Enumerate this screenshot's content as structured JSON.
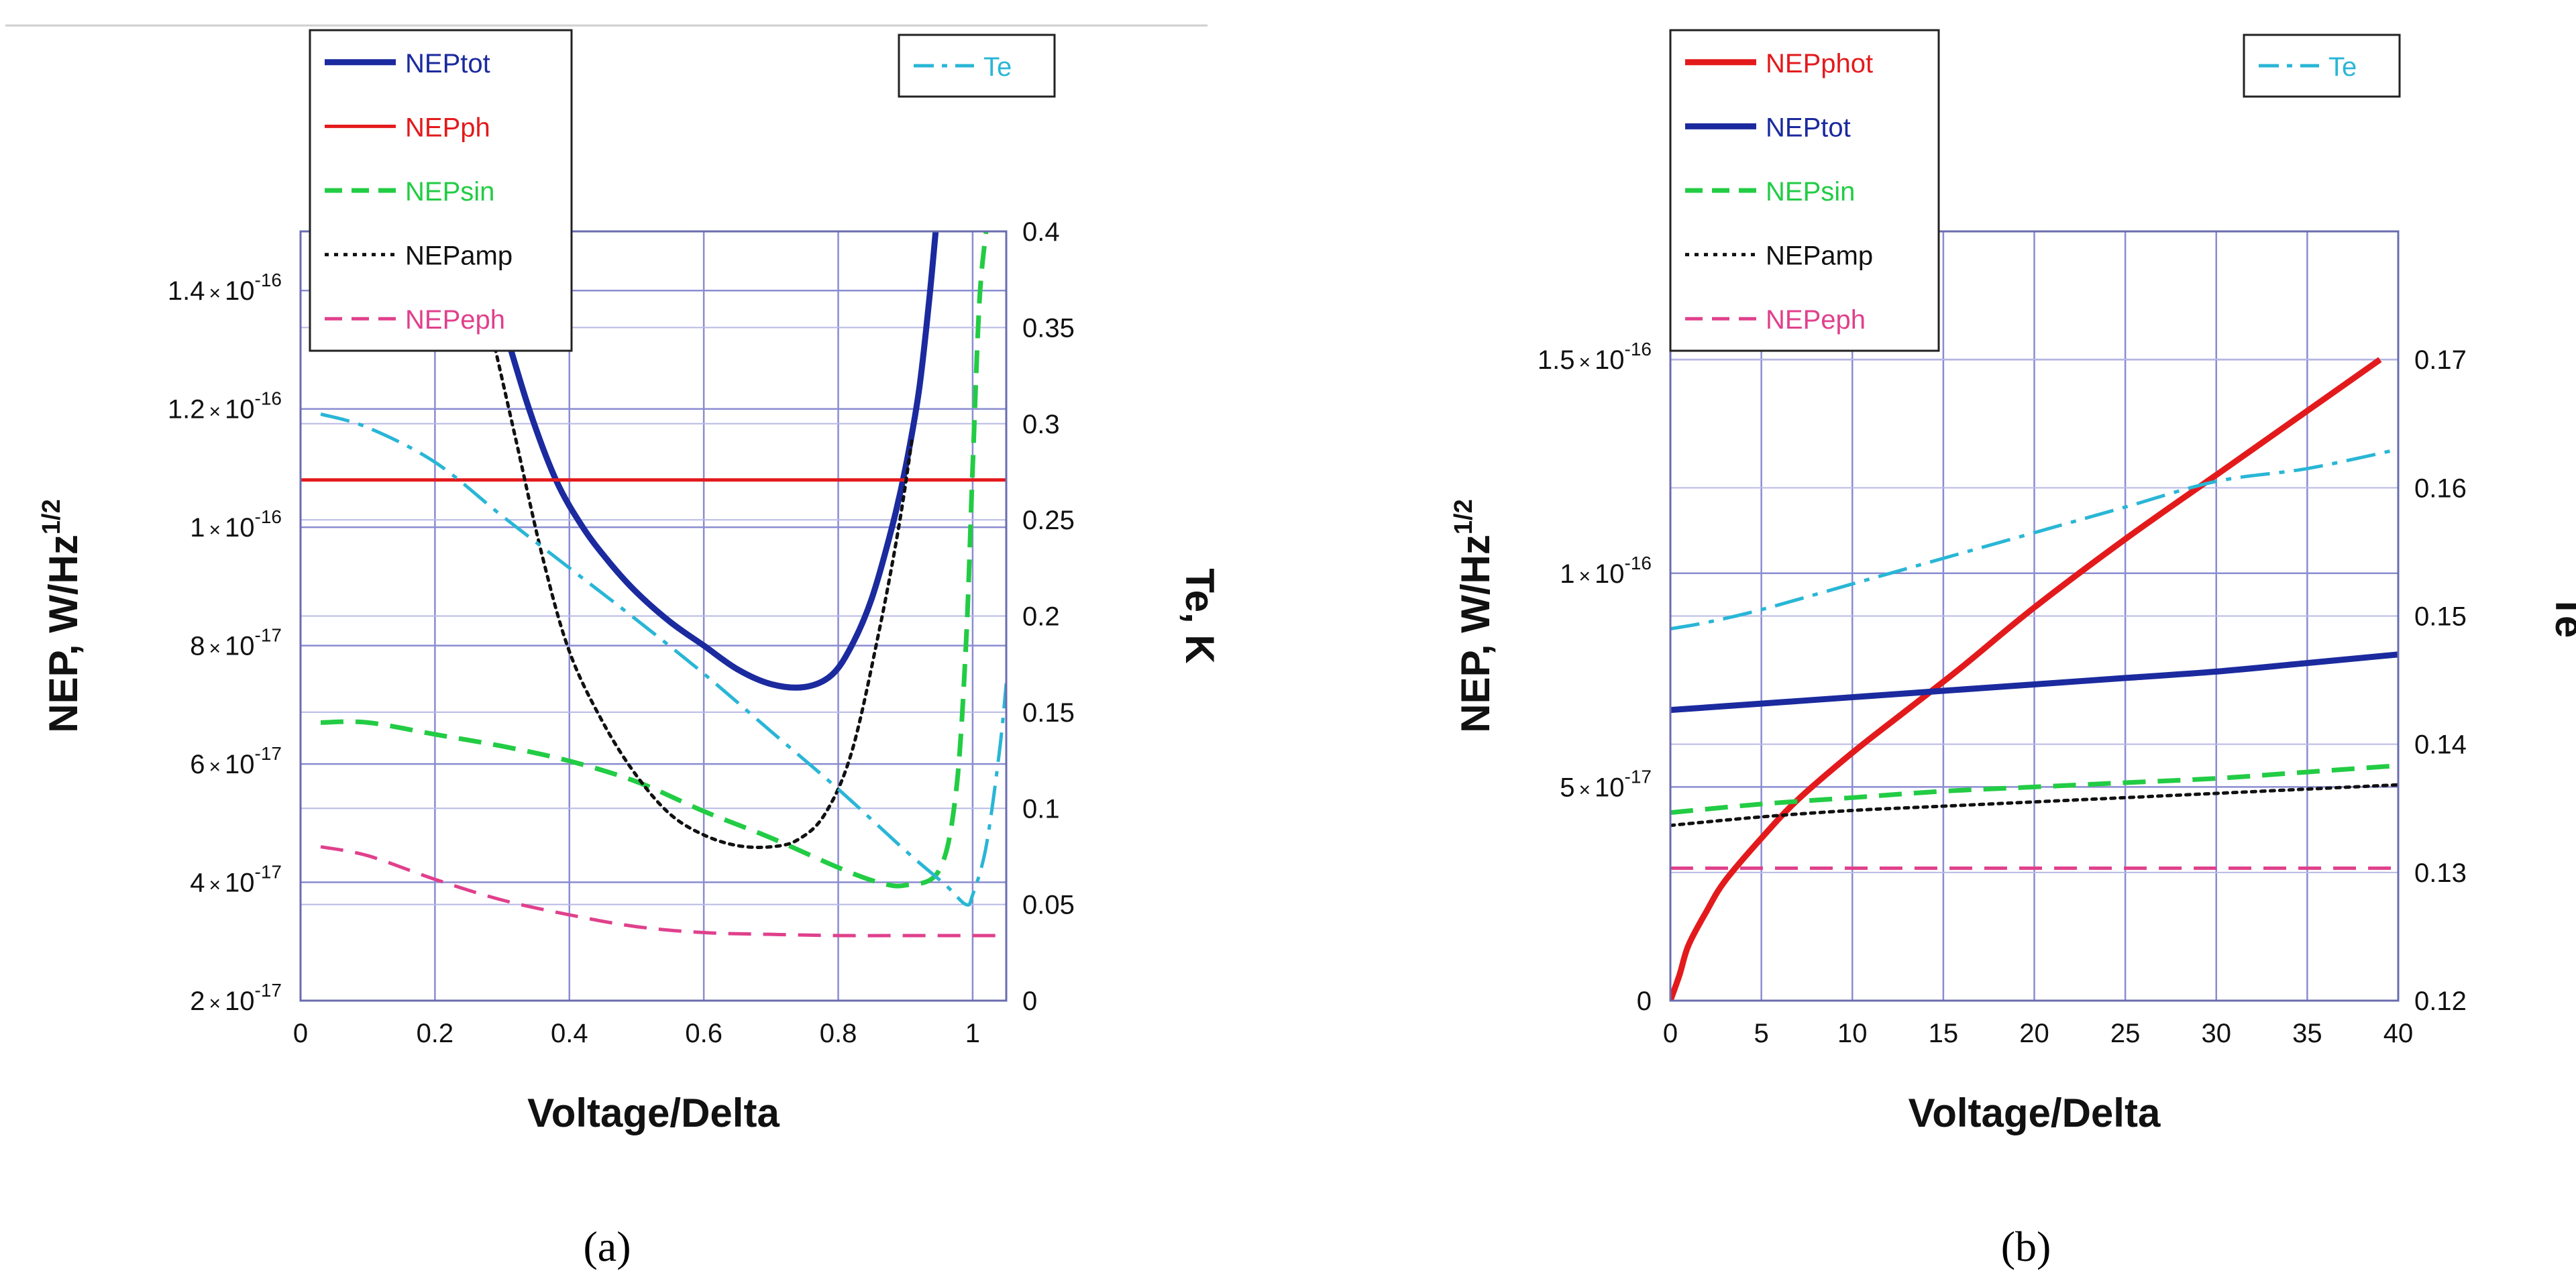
{
  "chart_data": [
    {
      "panel": "(a)",
      "type": "line",
      "xlabel": "Voltage/Delta",
      "ylabel": "NEP, W/Hz",
      "ylabel_sup": "1/2",
      "y2label": "Te, K",
      "xlim": [
        0,
        1.05
      ],
      "ylim": [
        2e-17,
        1.5e-16
      ],
      "y2lim": [
        0,
        0.4
      ],
      "x_ticks": [
        "0",
        "0.2",
        "0.4",
        "0.6",
        "0.8",
        "1"
      ],
      "x_tick_values": [
        0,
        0.2,
        0.4,
        0.6,
        0.8,
        1.0
      ],
      "y_ticks": [
        {
          "value": 2e-17,
          "mant": "2",
          "exp": "-17"
        },
        {
          "value": 4e-17,
          "mant": "4",
          "exp": "-17"
        },
        {
          "value": 6e-17,
          "mant": "6",
          "exp": "-17"
        },
        {
          "value": 8e-17,
          "mant": "8",
          "exp": "-17"
        },
        {
          "value": 1e-16,
          "mant": "1",
          "exp": "-16"
        },
        {
          "value": 1.2e-16,
          "mant": "1.2",
          "exp": "-16"
        },
        {
          "value": 1.4e-16,
          "mant": "1.4",
          "exp": "-16"
        }
      ],
      "y2_ticks": [
        "0",
        "0.05",
        "0.1",
        "0.15",
        "0.2",
        "0.25",
        "0.3",
        "0.35",
        "0.4"
      ],
      "y2_tick_values": [
        0,
        0.05,
        0.1,
        0.15,
        0.2,
        0.25,
        0.3,
        0.35,
        0.4
      ],
      "grid": true,
      "legend": {
        "left": "top-left",
        "right": "top-right"
      },
      "series": [
        {
          "name": "NEPtot",
          "axis": "left",
          "color": "#1b2a9e",
          "style": "solid",
          "width": 9,
          "x": [
            0.3,
            0.34,
            0.38,
            0.42,
            0.46,
            0.5,
            0.55,
            0.6,
            0.65,
            0.7,
            0.75,
            0.79,
            0.82,
            0.85,
            0.88,
            0.9,
            0.92,
            0.935,
            0.945
          ],
          "y": [
            1.35e-16,
            1.2e-16,
            1.08e-16,
            1e-16,
            9.4e-17,
            8.9e-17,
            8.4e-17,
            8e-17,
            7.6e-17,
            7.35e-17,
            7.3e-17,
            7.5e-17,
            8e-17,
            8.8e-17,
            1e-16,
            1.1e-16,
            1.23e-16,
            1.38e-16,
            1.5e-16
          ]
        },
        {
          "name": "NEPph",
          "axis": "left",
          "color": "#e31a1c",
          "style": "solid",
          "width": 5,
          "x": [
            0,
            1.05
          ],
          "y": [
            1.08e-16,
            1.08e-16
          ]
        },
        {
          "name": "NEPsin",
          "axis": "left",
          "color": "#22cc44",
          "style": "dash",
          "width": 7,
          "x": [
            0.03,
            0.1,
            0.2,
            0.3,
            0.4,
            0.5,
            0.6,
            0.7,
            0.8,
            0.86,
            0.9,
            0.95,
            0.975,
            0.99,
            1.0,
            1.01,
            1.02
          ],
          "y": [
            6.7e-17,
            6.7e-17,
            6.5e-17,
            6.3e-17,
            6.05e-17,
            5.7e-17,
            5.2e-17,
            4.75e-17,
            4.25e-17,
            4e-17,
            3.95e-17,
            4.2e-17,
            5.5e-17,
            8e-17,
            1.1e-16,
            1.38e-16,
            1.5e-16
          ]
        },
        {
          "name": "NEPamp",
          "axis": "left",
          "color": "#111111",
          "style": "dot",
          "width": 5,
          "x": [
            0.28,
            0.32,
            0.36,
            0.4,
            0.45,
            0.5,
            0.55,
            0.6,
            0.65,
            0.7,
            0.74,
            0.78,
            0.82,
            0.86,
            0.89,
            0.91
          ],
          "y": [
            1.35e-16,
            1.15e-16,
            9.5e-17,
            7.9e-17,
            6.7e-17,
            5.8e-17,
            5.15e-17,
            4.8e-17,
            4.62e-17,
            4.6e-17,
            4.72e-17,
            5.15e-17,
            6.2e-17,
            8.2e-17,
            1e-16,
            1.15e-16
          ]
        },
        {
          "name": "NEPeph",
          "axis": "left",
          "color": "#e0408c",
          "style": "dash",
          "width": 5,
          "x": [
            0.03,
            0.1,
            0.2,
            0.3,
            0.4,
            0.5,
            0.6,
            0.7,
            0.8,
            0.9,
            1.0,
            1.05
          ],
          "y": [
            4.6e-17,
            4.45e-17,
            4.05e-17,
            3.7e-17,
            3.45e-17,
            3.25e-17,
            3.15e-17,
            3.12e-17,
            3.1e-17,
            3.1e-17,
            3.1e-17,
            3.1e-17
          ]
        },
        {
          "name": "Te",
          "axis": "right",
          "color": "#29b6d6",
          "style": "dashdot",
          "width": 5,
          "x": [
            0.03,
            0.1,
            0.2,
            0.3,
            0.4,
            0.5,
            0.6,
            0.7,
            0.8,
            0.9,
            0.96,
            0.99,
            1.0,
            1.02,
            1.04,
            1.05
          ],
          "y": [
            0.305,
            0.298,
            0.28,
            0.252,
            0.225,
            0.198,
            0.17,
            0.14,
            0.11,
            0.078,
            0.06,
            0.05,
            0.055,
            0.08,
            0.13,
            0.165
          ]
        }
      ]
    },
    {
      "panel": "(b)",
      "type": "line",
      "xlabel": "Voltage/Delta",
      "ylabel": "NEP, W/Hz",
      "ylabel_sup": "1/2",
      "y2label": "Te",
      "xlim": [
        0,
        40
      ],
      "ylim": [
        0,
        1.8e-16
      ],
      "y2lim": [
        0.12,
        0.18
      ],
      "x_ticks": [
        "0",
        "5",
        "10",
        "15",
        "20",
        "25",
        "30",
        "35",
        "40"
      ],
      "x_tick_values": [
        0,
        5,
        10,
        15,
        20,
        25,
        30,
        35,
        40
      ],
      "y_ticks": [
        {
          "value": 0,
          "mant": "0",
          "exp": ""
        },
        {
          "value": 5e-17,
          "mant": "5",
          "exp": "-17"
        },
        {
          "value": 1e-16,
          "mant": "1",
          "exp": "-16"
        },
        {
          "value": 1.5e-16,
          "mant": "1.5",
          "exp": "-16"
        }
      ],
      "y2_ticks": [
        "0.12",
        "0.13",
        "0.14",
        "0.15",
        "0.16",
        "0.17"
      ],
      "y2_tick_values": [
        0.12,
        0.13,
        0.14,
        0.15,
        0.16,
        0.17
      ],
      "grid": true,
      "legend": {
        "left": "top-left",
        "right": "top-right"
      },
      "series": [
        {
          "name": "NEPphot",
          "axis": "left",
          "color": "#e31a1c",
          "style": "solid",
          "width": 9,
          "x": [
            0,
            0.5,
            1,
            2,
            3,
            5,
            7,
            10,
            13,
            16,
            20,
            25,
            30,
            35,
            39
          ],
          "y": [
            0,
            6e-18,
            1.3e-17,
            2.1e-17,
            2.8e-17,
            3.8e-17,
            4.7e-17,
            5.8e-17,
            6.8e-17,
            7.8e-17,
            9.2e-17,
            1.08e-16,
            1.23e-16,
            1.38e-16,
            1.5e-16
          ]
        },
        {
          "name": "NEPtot",
          "axis": "left",
          "color": "#1b2a9e",
          "style": "solid",
          "width": 9,
          "x": [
            0,
            5,
            10,
            15,
            20,
            25,
            30,
            35,
            40
          ],
          "y": [
            6.8e-17,
            6.95e-17,
            7.1e-17,
            7.25e-17,
            7.4e-17,
            7.55e-17,
            7.7e-17,
            7.9e-17,
            8.1e-17
          ]
        },
        {
          "name": "NEPsin",
          "axis": "left",
          "color": "#22cc44",
          "style": "dash",
          "width": 7,
          "x": [
            0,
            5,
            10,
            15,
            20,
            25,
            30,
            35,
            40
          ],
          "y": [
            4.4e-17,
            4.6e-17,
            4.75e-17,
            4.9e-17,
            5e-17,
            5.1e-17,
            5.2e-17,
            5.35e-17,
            5.5e-17
          ]
        },
        {
          "name": "NEPamp",
          "axis": "left",
          "color": "#111111",
          "style": "dot",
          "width": 5,
          "x": [
            0,
            5,
            10,
            15,
            20,
            25,
            30,
            35,
            40
          ],
          "y": [
            4.1e-17,
            4.3e-17,
            4.45e-17,
            4.55e-17,
            4.65e-17,
            4.75e-17,
            4.85e-17,
            4.95e-17,
            5.05e-17
          ]
        },
        {
          "name": "NEPeph",
          "axis": "left",
          "color": "#e0408c",
          "style": "dash",
          "width": 5,
          "x": [
            0,
            40
          ],
          "y": [
            3.1e-17,
            3.1e-17
          ]
        },
        {
          "name": "Te",
          "axis": "right",
          "color": "#29b6d6",
          "style": "dashdot",
          "width": 5,
          "x": [
            0,
            2,
            5,
            10,
            15,
            20,
            25,
            30,
            35,
            40
          ],
          "y": [
            0.149,
            0.1495,
            0.1505,
            0.1525,
            0.1545,
            0.1565,
            0.1585,
            0.1605,
            0.1615,
            0.163
          ]
        }
      ]
    }
  ],
  "captions": [
    "(a)",
    "(b)"
  ]
}
